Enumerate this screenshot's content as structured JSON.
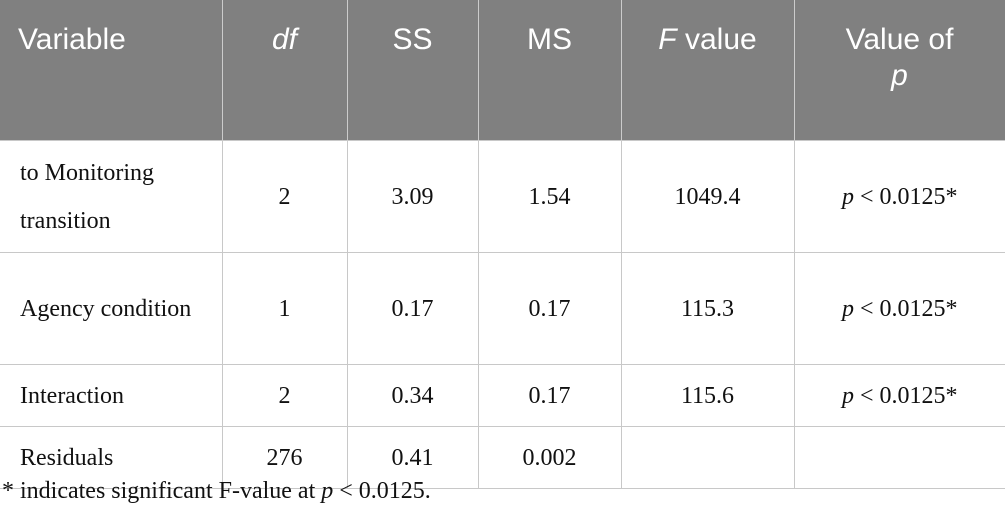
{
  "table": {
    "columns": [
      "Variable",
      "df",
      "SS",
      "MS",
      [
        "F",
        "value"
      ],
      [
        "Value of",
        "p"
      ]
    ],
    "rows": [
      [
        "to Monitoring transition",
        "2",
        "3.09",
        "1.54",
        "1049.4",
        [
          "p",
          "< 0.0125*"
        ]
      ],
      [
        "Agency condition",
        "1",
        "0.17",
        "0.17",
        "115.3",
        [
          "p",
          "< 0.0125*"
        ]
      ],
      [
        "Interaction",
        "2",
        "0.34",
        "0.17",
        "115.6",
        [
          "p",
          "< 0.0125*"
        ]
      ],
      [
        "Residuals",
        "276",
        "0.41",
        "0.002"
      ]
    ]
  },
  "footnote": [
    "* indicates significant F-value at",
    "p",
    "< 0.0125."
  ]
}
